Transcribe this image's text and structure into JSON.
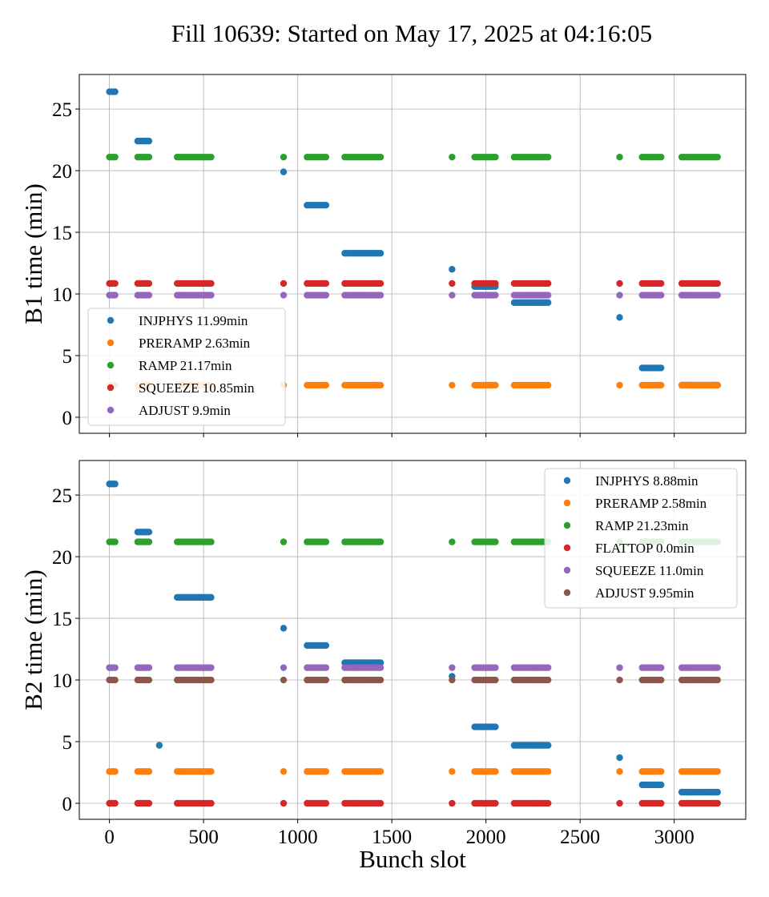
{
  "title": "Fill 10639: Started on May 17, 2025 at 04:16:05",
  "chart_data": [
    {
      "type": "scatter",
      "ylabel": "B1 time (min)",
      "xlabel": "",
      "xlim": [
        -160,
        3380
      ],
      "ylim": [
        -1.3,
        27.8
      ],
      "xticks": [
        0,
        500,
        1000,
        1500,
        2000,
        2500,
        3000
      ],
      "yticks": [
        0,
        5,
        10,
        15,
        20,
        25
      ],
      "grid": true,
      "legend_position": "lower-left",
      "series": [
        {
          "name": "INJPHYS 11.99min",
          "color": "#1f77b4",
          "segments": [
            [
              0,
              30,
              26.4
            ],
            [
              150,
              210,
              22.4
            ],
            [
              925,
              925,
              19.9
            ],
            [
              1050,
              1150,
              17.2
            ],
            [
              1250,
              1440,
              13.3
            ],
            [
              1820,
              1820,
              12.0
            ],
            [
              1940,
              2050,
              10.6
            ],
            [
              2150,
              2330,
              9.3
            ],
            [
              2710,
              2710,
              8.1
            ],
            [
              2830,
              2930,
              4.0
            ],
            [
              3040,
              3230,
              2.6
            ]
          ]
        },
        {
          "name": "PRERAMP 2.63min",
          "color": "#ff7f0e",
          "segments": [
            [
              0,
              30,
              2.6
            ],
            [
              150,
              210,
              2.6
            ],
            [
              360,
              540,
              2.6
            ],
            [
              925,
              925,
              2.6
            ],
            [
              1050,
              1150,
              2.6
            ],
            [
              1250,
              1440,
              2.6
            ],
            [
              1820,
              1820,
              2.6
            ],
            [
              1940,
              2050,
              2.6
            ],
            [
              2150,
              2330,
              2.6
            ],
            [
              2710,
              2710,
              2.6
            ],
            [
              2830,
              2930,
              2.6
            ],
            [
              3040,
              3230,
              2.6
            ]
          ]
        },
        {
          "name": "RAMP 21.17min",
          "color": "#2ca02c",
          "segments": [
            [
              0,
              30,
              21.1
            ],
            [
              150,
              210,
              21.1
            ],
            [
              360,
              540,
              21.1
            ],
            [
              925,
              925,
              21.1
            ],
            [
              1050,
              1150,
              21.1
            ],
            [
              1250,
              1440,
              21.1
            ],
            [
              1820,
              1820,
              21.1
            ],
            [
              1940,
              2050,
              21.1
            ],
            [
              2150,
              2330,
              21.1
            ],
            [
              2710,
              2710,
              21.1
            ],
            [
              2830,
              2930,
              21.1
            ],
            [
              3040,
              3230,
              21.1
            ]
          ]
        },
        {
          "name": "SQUEEZE 10.85min",
          "color": "#d62728",
          "segments": [
            [
              0,
              30,
              10.85
            ],
            [
              150,
              210,
              10.85
            ],
            [
              360,
              540,
              10.85
            ],
            [
              925,
              925,
              10.85
            ],
            [
              1050,
              1150,
              10.85
            ],
            [
              1250,
              1440,
              10.85
            ],
            [
              1820,
              1820,
              10.85
            ],
            [
              1940,
              2050,
              10.85
            ],
            [
              2150,
              2330,
              10.85
            ],
            [
              2710,
              2710,
              10.85
            ],
            [
              2830,
              2930,
              10.85
            ],
            [
              3040,
              3230,
              10.85
            ]
          ]
        },
        {
          "name": "ADJUST 9.9min",
          "color": "#9467bd",
          "segments": [
            [
              0,
              30,
              9.9
            ],
            [
              150,
              210,
              9.9
            ],
            [
              360,
              540,
              9.9
            ],
            [
              925,
              925,
              9.9
            ],
            [
              1050,
              1150,
              9.9
            ],
            [
              1250,
              1440,
              9.9
            ],
            [
              1820,
              1820,
              9.9
            ],
            [
              1940,
              2050,
              9.9
            ],
            [
              2150,
              2330,
              9.9
            ],
            [
              2710,
              2710,
              9.9
            ],
            [
              2830,
              2930,
              9.9
            ],
            [
              3040,
              3230,
              9.9
            ]
          ]
        }
      ]
    },
    {
      "type": "scatter",
      "ylabel": "B2 time (min)",
      "xlabel": "Bunch slot",
      "xlim": [
        -160,
        3380
      ],
      "ylim": [
        -1.3,
        27.8
      ],
      "xticks": [
        0,
        500,
        1000,
        1500,
        2000,
        2500,
        3000
      ],
      "yticks": [
        0,
        5,
        10,
        15,
        20,
        25
      ],
      "grid": true,
      "legend_position": "upper-right",
      "series": [
        {
          "name": "INJPHYS 8.88min",
          "color": "#1f77b4",
          "segments": [
            [
              0,
              30,
              25.9
            ],
            [
              150,
              210,
              22.0
            ],
            [
              265,
              265,
              4.7
            ],
            [
              360,
              540,
              16.7
            ],
            [
              925,
              925,
              14.2
            ],
            [
              1050,
              1150,
              12.8
            ],
            [
              1250,
              1440,
              11.4
            ],
            [
              1820,
              1820,
              10.3
            ],
            [
              1940,
              2050,
              6.2
            ],
            [
              2150,
              2330,
              4.7
            ],
            [
              2710,
              2710,
              3.7
            ],
            [
              2830,
              2930,
              1.5
            ],
            [
              3040,
              3230,
              0.9
            ]
          ]
        },
        {
          "name": "PRERAMP 2.58min",
          "color": "#ff7f0e",
          "segments": [
            [
              0,
              30,
              2.58
            ],
            [
              150,
              210,
              2.58
            ],
            [
              360,
              540,
              2.58
            ],
            [
              925,
              925,
              2.58
            ],
            [
              1050,
              1150,
              2.58
            ],
            [
              1250,
              1440,
              2.58
            ],
            [
              1820,
              1820,
              2.58
            ],
            [
              1940,
              2050,
              2.58
            ],
            [
              2150,
              2330,
              2.58
            ],
            [
              2710,
              2710,
              2.58
            ],
            [
              2830,
              2930,
              2.58
            ],
            [
              3040,
              3230,
              2.58
            ]
          ]
        },
        {
          "name": "RAMP 21.23min",
          "color": "#2ca02c",
          "segments": [
            [
              0,
              30,
              21.2
            ],
            [
              150,
              210,
              21.2
            ],
            [
              360,
              540,
              21.2
            ],
            [
              925,
              925,
              21.2
            ],
            [
              1050,
              1150,
              21.2
            ],
            [
              1250,
              1440,
              21.2
            ],
            [
              1820,
              1820,
              21.2
            ],
            [
              1940,
              2050,
              21.2
            ],
            [
              2150,
              2330,
              21.2
            ],
            [
              2710,
              2710,
              21.2
            ],
            [
              2830,
              2930,
              21.2
            ],
            [
              3040,
              3230,
              21.2
            ]
          ]
        },
        {
          "name": "FLATTOP 0.0min",
          "color": "#d62728",
          "segments": [
            [
              0,
              30,
              0.0
            ],
            [
              150,
              210,
              0.0
            ],
            [
              360,
              540,
              0.0
            ],
            [
              925,
              925,
              0.0
            ],
            [
              1050,
              1150,
              0.0
            ],
            [
              1250,
              1440,
              0.0
            ],
            [
              1820,
              1820,
              0.0
            ],
            [
              1940,
              2050,
              0.0
            ],
            [
              2150,
              2330,
              0.0
            ],
            [
              2710,
              2710,
              0.0
            ],
            [
              2830,
              2930,
              0.0
            ],
            [
              3040,
              3230,
              0.0
            ]
          ]
        },
        {
          "name": "SQUEEZE 11.0min",
          "color": "#9467bd",
          "segments": [
            [
              0,
              30,
              11.0
            ],
            [
              150,
              210,
              11.0
            ],
            [
              360,
              540,
              11.0
            ],
            [
              925,
              925,
              11.0
            ],
            [
              1050,
              1150,
              11.0
            ],
            [
              1250,
              1440,
              11.0
            ],
            [
              1820,
              1820,
              11.0
            ],
            [
              1940,
              2050,
              11.0
            ],
            [
              2150,
              2330,
              11.0
            ],
            [
              2710,
              2710,
              11.0
            ],
            [
              2830,
              2930,
              11.0
            ],
            [
              3040,
              3230,
              11.0
            ]
          ]
        },
        {
          "name": "ADJUST 9.95min",
          "color": "#8c564b",
          "segments": [
            [
              0,
              30,
              10.0
            ],
            [
              150,
              210,
              10.0
            ],
            [
              360,
              540,
              10.0
            ],
            [
              925,
              925,
              10.0
            ],
            [
              1050,
              1150,
              10.0
            ],
            [
              1250,
              1440,
              10.0
            ],
            [
              1820,
              1820,
              10.0
            ],
            [
              1940,
              2050,
              10.0
            ],
            [
              2150,
              2330,
              10.0
            ],
            [
              2710,
              2710,
              10.0
            ],
            [
              2830,
              2930,
              10.0
            ],
            [
              3040,
              3230,
              10.0
            ]
          ]
        }
      ]
    }
  ]
}
